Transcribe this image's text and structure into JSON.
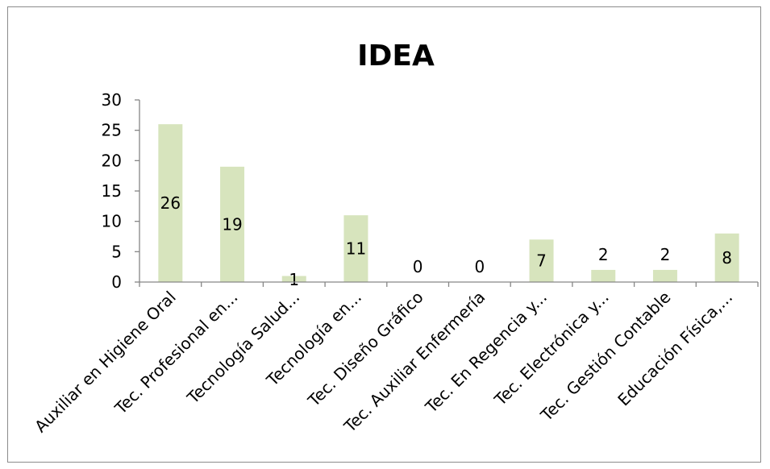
{
  "chart_data": {
    "type": "bar",
    "title": "IDEA",
    "categories": [
      "Auxiliar en Higiene Oral",
      "Tec. Profesional en...",
      "Tecnología Salud...",
      "Tecnología en...",
      "Tec. Diseño Gráfico",
      "Tec. Auxiliar Enfermería",
      "Tec. En Regencia y...",
      "Tec. Electrónica y...",
      "Tec. Gestión Contable",
      "Educación Física,..."
    ],
    "values": [
      26,
      19,
      1,
      11,
      0,
      0,
      7,
      2,
      2,
      8
    ],
    "yticks": [
      "0",
      "5",
      "10",
      "15",
      "20",
      "25",
      "30"
    ],
    "ylim": [
      0,
      30
    ],
    "xlabel": "",
    "ylabel": "",
    "bar_color": "#d7e4bd",
    "data_labels": true,
    "legend": "none",
    "grid": false
  }
}
